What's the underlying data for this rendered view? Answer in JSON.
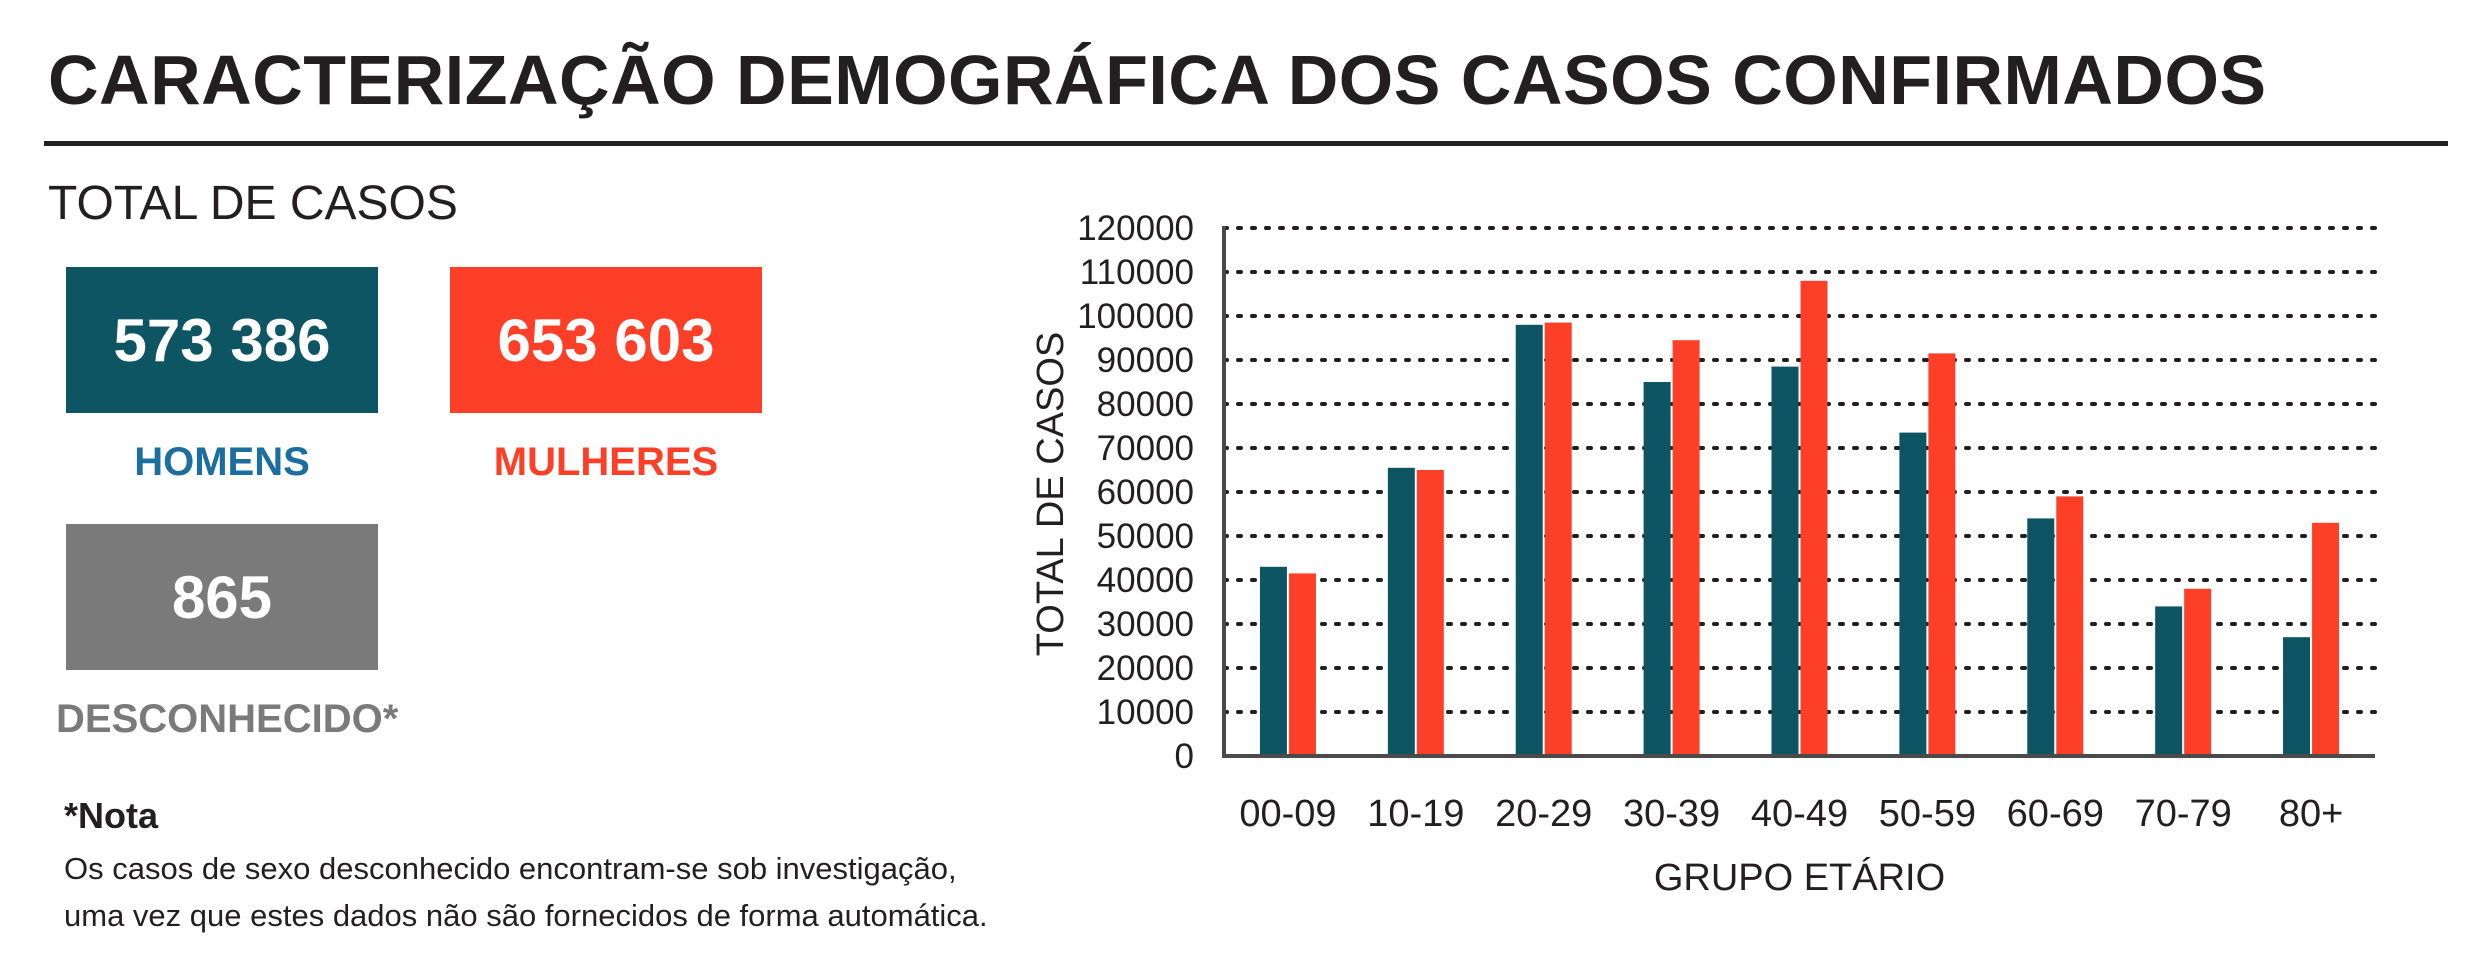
{
  "title": "CARACTERIZAÇÃO DEMOGRÁFICA DOS CASOS CONFIRMADOS",
  "totals": {
    "heading": "TOTAL DE CASOS",
    "men": {
      "value": "573 386",
      "label": "HOMENS",
      "box_color": "#0d5563",
      "label_color": "#1b6e9f"
    },
    "women": {
      "value": "653 603",
      "label": "MULHERES",
      "box_color": "#fe3f28",
      "label_color": "#fe3f28"
    },
    "unknown": {
      "value": "865",
      "label": "DESCONHECIDO*",
      "box_color": "#7a7a7a",
      "label_color": "#7a7a7a"
    }
  },
  "note": {
    "title": "*Nota",
    "lines": [
      "Os casos de sexo desconhecido encontram-se sob investigação,",
      "uma vez que estes dados não são fornecidos de forma automática."
    ]
  },
  "chart_data": {
    "type": "bar",
    "categories": [
      "00-09",
      "10-19",
      "20-29",
      "30-39",
      "40-49",
      "50-59",
      "60-69",
      "70-79",
      "80+"
    ],
    "series": [
      {
        "color": "#0d5563",
        "values": [
          43000,
          65500,
          98000,
          85000,
          88500,
          73500,
          54000,
          34000,
          27000
        ]
      },
      {
        "color": "#fe3f28",
        "values": [
          41500,
          65000,
          98500,
          94500,
          108000,
          91500,
          59000,
          38000,
          53000
        ]
      }
    ],
    "xlabel": "GRUPO ETÁRIO",
    "ylabel": "TOTAL DE CASOS",
    "ylim": [
      0,
      120000
    ],
    "yticks": [
      0,
      10000,
      20000,
      30000,
      40000,
      50000,
      60000,
      70000,
      80000,
      90000,
      100000,
      110000,
      120000
    ],
    "grid": true,
    "grid_style": "dotted",
    "legend": "none"
  }
}
